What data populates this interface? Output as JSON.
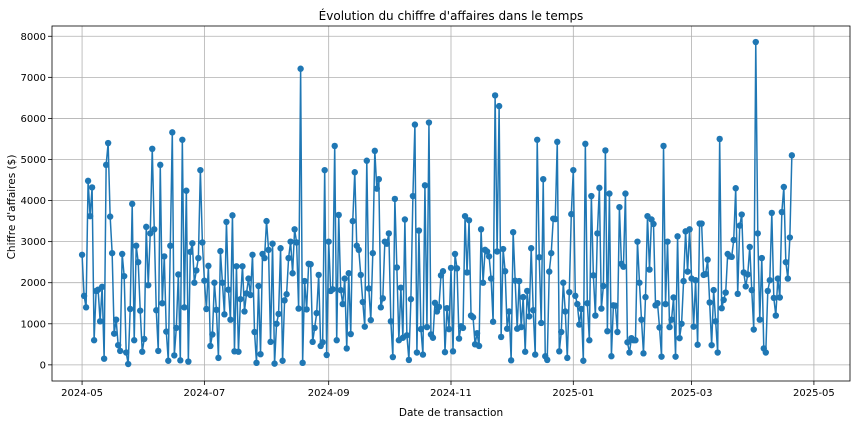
{
  "chart_data": {
    "type": "line",
    "title": "Évolution du chiffre d'affaires dans le temps",
    "xlabel": "Date de transaction",
    "ylabel": "Chiffre d'affaires ($)",
    "x_ticks": [
      "2024-05",
      "2024-07",
      "2024-09",
      "2024-11",
      "2025-01",
      "2025-03",
      "2025-05"
    ],
    "y_ticks": [
      0,
      1000,
      2000,
      3000,
      4000,
      5000,
      6000,
      7000,
      8000
    ],
    "xlim": [
      "2024-04-16",
      "2025-05-19"
    ],
    "ylim": [
      -393,
      8250
    ],
    "grid": true,
    "marker": "circle",
    "color": "#1f77b4",
    "series": [
      {
        "start_date": "2024-05-01",
        "values": [
          2680,
          1680,
          1400,
          4480,
          3620,
          4320,
          600,
          1800,
          1830,
          1060,
          1900,
          150,
          4870,
          5400,
          3610,
          2720,
          760,
          1100,
          480,
          340,
          2700,
          2160,
          300,
          20,
          1360,
          3920,
          600,
          2900,
          2500,
          1320,
          320,
          630,
          3360,
          1940,
          3200,
          5260,
          3300,
          1330,
          340,
          4870,
          1500,
          2640,
          810,
          100,
          2900,
          5660,
          230,
          900,
          2200,
          110,
          5480,
          1400,
          4240,
          80,
          2750,
          2960,
          2000,
          2300,
          2600,
          4740,
          2980,
          2050,
          1360,
          2410,
          460,
          740,
          2000,
          1340,
          170,
          2770,
          2000,
          1230,
          3480,
          1830,
          1100,
          3640,
          330,
          2400,
          320,
          1600,
          2400,
          1300,
          1740,
          2100,
          1700,
          2680,
          800,
          50,
          1920,
          260,
          2700,
          2600,
          3500,
          2800,
          560,
          2950,
          30,
          1000,
          1240,
          2840,
          100,
          1570,
          1720,
          2600,
          3000,
          2230,
          3300,
          2980,
          1370,
          7210,
          50,
          2040,
          1350,
          2460,
          2450,
          560,
          900,
          1260,
          2190,
          460,
          550,
          4740,
          240,
          3000,
          1800,
          1840,
          5330,
          600,
          3650,
          1820,
          1480,
          2100,
          400,
          2230,
          750,
          3500,
          4690,
          2900,
          2800,
          2190,
          1530,
          930,
          4970,
          1860,
          1090,
          2720,
          5210,
          4290,
          4520,
          1400,
          1620,
          3000,
          2950,
          3200,
          1060,
          190,
          4040,
          2370,
          600,
          1880,
          660,
          3540,
          720,
          120,
          1600,
          4110,
          5850,
          300,
          3270,
          870,
          250,
          4370,
          920,
          5900,
          740,
          660,
          1510,
          1300,
          1410,
          2180,
          2280,
          310,
          1380,
          870,
          2360,
          330,
          2700,
          2350,
          640,
          940,
          900,
          3620,
          2250,
          3520,
          1200,
          1160,
          500,
          770,
          460,
          3300,
          2000,
          2800,
          2760,
          2640,
          2100,
          1050,
          6560,
          2760,
          6300,
          680,
          2820,
          2280,
          880,
          1300,
          110,
          3230,
          2050,
          880,
          2040,
          920,
          1650,
          320,
          1800,
          1180,
          2840,
          1330,
          250,
          5480,
          2620,
          1020,
          4520,
          210,
          120,
          2270,
          2720,
          3560,
          3550,
          5430,
          330,
          800,
          2000,
          1300,
          170,
          1770,
          3670,
          4740,
          1680,
          1480,
          980,
          1360,
          100,
          5380,
          1500,
          600,
          4110,
          2180,
          1200,
          3200,
          4310,
          1370,
          1920,
          5220,
          820,
          4170,
          210,
          1450,
          1440,
          800,
          3840,
          2460,
          2390,
          4170,
          550,
          300,
          650,
          600,
          600,
          3000,
          2000,
          1100,
          280,
          1650,
          3620,
          2320,
          3540,
          3430,
          1450,
          1500,
          910,
          200,
          5330,
          1480,
          3000,
          920,
          1100,
          1640,
          200,
          3130,
          650,
          1000,
          2040,
          3250,
          2270,
          3300,
          2100,
          930,
          2060,
          490,
          3440,
          3440,
          2190,
          2210,
          2560,
          1520,
          480,
          1820,
          1060,
          300,
          5500,
          1380,
          1580,
          1760,
          2700,
          2640,
          2630,
          3040,
          4300,
          1730,
          3390,
          3660,
          2250,
          1910,
          2200,
          2870,
          1820,
          860,
          7860,
          3200,
          1100,
          2600,
          400,
          300,
          1800,
          2060,
          3700,
          1630,
          1200,
          2100,
          1640,
          3720,
          4330,
          2500,
          2100,
          3100,
          5100
        ]
      }
    ]
  }
}
